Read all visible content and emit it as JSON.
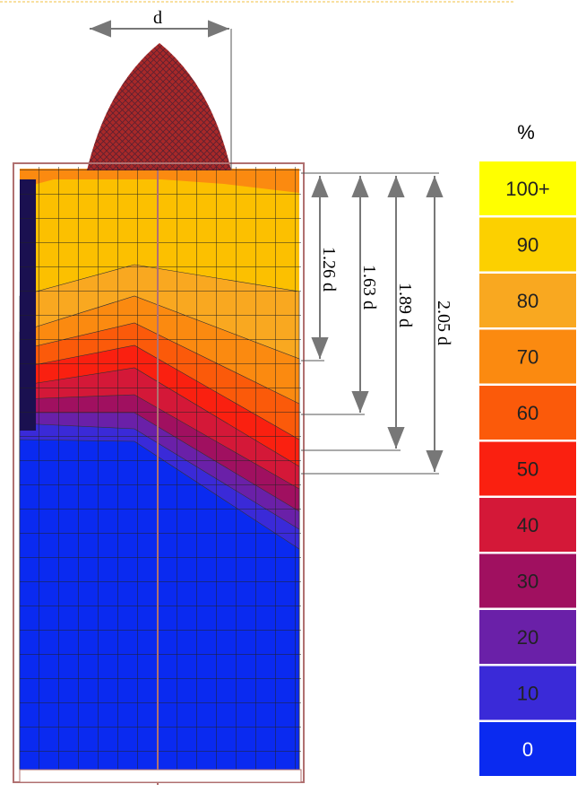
{
  "diagram": {
    "width_label": "d",
    "depth_labels": [
      "1.26 d",
      "1.63 d",
      "1.89 d",
      "2.05 d"
    ],
    "legend": {
      "title": "%",
      "items": [
        {
          "label": "100+",
          "color": "#ffff00"
        },
        {
          "label": "90",
          "color": "#fcd000"
        },
        {
          "label": "80",
          "color": "#f9a820"
        },
        {
          "label": "70",
          "color": "#fb8a10"
        },
        {
          "label": "60",
          "color": "#fb5a0a"
        },
        {
          "label": "50",
          "color": "#fa2010"
        },
        {
          "label": "40",
          "color": "#d41838"
        },
        {
          "label": "30",
          "color": "#a01060"
        },
        {
          "label": "20",
          "color": "#6a20a8"
        },
        {
          "label": "10",
          "color": "#3a2ad8"
        },
        {
          "label": "0",
          "color": "#0a2af0"
        }
      ]
    }
  }
}
